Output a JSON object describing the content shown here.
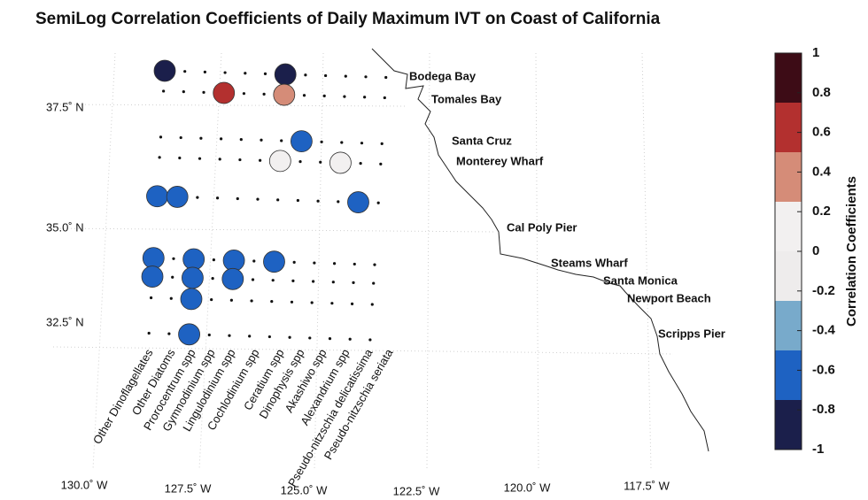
{
  "chart_data": {
    "type": "correlation_map",
    "title": "SemiLog Correlation Coefficients of Daily Maximum IVT on Coast of California",
    "stations": [
      "Bodega Bay",
      "Tomales Bay",
      "Santa Cruz",
      "Monterey Wharf",
      "Cal Poly Pier",
      "Steams Wharf",
      "Santa Monica",
      "Newport Beach",
      "Scripps Pier"
    ],
    "species": [
      "Other Dinoflagellates",
      "Other Diatoms",
      "Prorocentrum spp",
      "Gymnodinium spp",
      "Lingulodinium spp",
      "Cochlodinium spp",
      "Ceratium spp",
      "Dinophysis spp",
      "Akashiwo spp",
      "Alexandrium spp",
      "Pseudo-nitzschia delicatissima",
      "Pseudo-nitzschia seriata"
    ],
    "values": [
      [
        -0.85,
        null,
        null,
        null,
        null,
        null,
        -0.85,
        null,
        null,
        null,
        null,
        null
      ],
      [
        null,
        null,
        null,
        0.6,
        null,
        null,
        0.35,
        null,
        null,
        null,
        null,
        null
      ],
      [
        null,
        null,
        null,
        null,
        null,
        null,
        null,
        -0.6,
        null,
        null,
        null,
        null
      ],
      [
        null,
        null,
        null,
        null,
        null,
        null,
        0.05,
        null,
        null,
        0.05,
        null,
        null
      ],
      [
        -0.55,
        -0.55,
        null,
        null,
        null,
        null,
        null,
        null,
        null,
        null,
        -0.65,
        null
      ],
      [
        -0.6,
        null,
        -0.55,
        null,
        -0.55,
        null,
        -0.55,
        null,
        null,
        null,
        null,
        null
      ],
      [
        -0.55,
        null,
        -0.55,
        null,
        -0.55,
        null,
        null,
        null,
        null,
        null,
        null,
        null
      ],
      [
        null,
        null,
        -0.55,
        null,
        null,
        null,
        null,
        null,
        null,
        null,
        null,
        null
      ],
      [
        null,
        null,
        -0.55,
        null,
        null,
        null,
        null,
        null,
        null,
        null,
        null,
        null
      ]
    ],
    "latitude_labels": [
      "37.5˚ N",
      "35.0˚ N",
      "32.5˚ N"
    ],
    "longitude_labels": [
      "130.0˚ W",
      "127.5˚ W",
      "125.0˚ W",
      "122.5˚ W",
      "120.0˚ W",
      "117.5˚ W"
    ],
    "colorbar_label": "Correlation Coefficients",
    "clim": [
      -1,
      1
    ],
    "colorbar_colors": [
      "#3d0c16",
      "#b3302f",
      "#d58c78",
      "#f2f0f0",
      "#eeecec",
      "#78aacb",
      "#1e62c2",
      "#1b1f4b"
    ],
    "colorbar_ticks": [
      1,
      0.8,
      0.6,
      0.4,
      0.2,
      0,
      -0.2,
      -0.4,
      -0.6,
      -0.8,
      -1
    ]
  }
}
